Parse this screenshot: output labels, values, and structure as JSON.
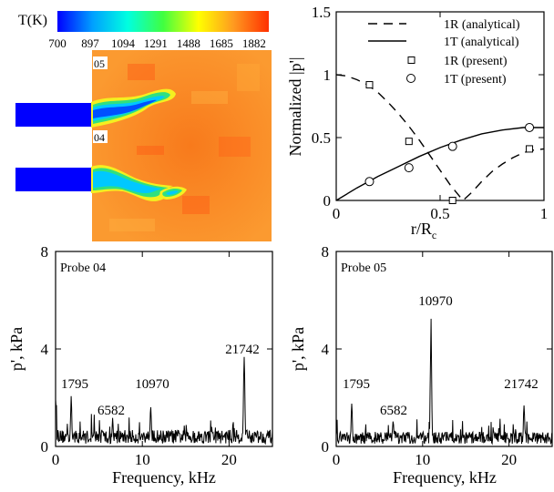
{
  "colorbar": {
    "label": "T(K)",
    "ticks": [
      "700",
      "897",
      "1094",
      "1291",
      "1488",
      "1685",
      "1882"
    ],
    "colors": [
      "#0000ff",
      "#00a0ff",
      "#00ffe0",
      "#40ff40",
      "#ffff00",
      "#ff9a20",
      "#ff3000"
    ]
  },
  "contour": {
    "probe_labels": [
      "05",
      "04"
    ]
  },
  "chart_data": [
    {
      "type": "line",
      "title": "",
      "xlabel": "r/R",
      "xlabel_sub": "c",
      "ylabel": "Normalized |p'|",
      "xlim": [
        0,
        1
      ],
      "ylim": [
        0,
        1.5
      ],
      "xticks": [
        "0",
        "0.5",
        "1"
      ],
      "yticks": [
        "0",
        "0.5",
        "1",
        "1.5"
      ],
      "legend": {
        "position": "top-right",
        "entries": [
          "1R (analytical)",
          "1T (analytical)",
          "1R (present)",
          "1T (present)"
        ]
      },
      "series": [
        {
          "name": "1R (analytical)",
          "style": "dashed",
          "x": [
            0,
            0.05,
            0.1,
            0.15,
            0.2,
            0.25,
            0.3,
            0.35,
            0.4,
            0.45,
            0.5,
            0.55,
            0.6,
            0.61,
            0.65,
            0.7,
            0.75,
            0.8,
            0.85,
            0.9,
            0.95,
            1
          ],
          "y": [
            1.0,
            0.99,
            0.96,
            0.92,
            0.86,
            0.78,
            0.69,
            0.59,
            0.48,
            0.36,
            0.24,
            0.12,
            0.02,
            0.0,
            0.06,
            0.15,
            0.23,
            0.29,
            0.34,
            0.38,
            0.4,
            0.41
          ]
        },
        {
          "name": "1T (analytical)",
          "style": "solid",
          "x": [
            0,
            0.1,
            0.2,
            0.3,
            0.4,
            0.5,
            0.6,
            0.7,
            0.8,
            0.9,
            1
          ],
          "y": [
            0,
            0.1,
            0.19,
            0.27,
            0.35,
            0.42,
            0.48,
            0.53,
            0.56,
            0.58,
            0.58
          ]
        },
        {
          "name": "1R (present)",
          "style": "square",
          "x": [
            0.16,
            0.35,
            0.56,
            0.93
          ],
          "y": [
            0.92,
            0.47,
            0.0,
            0.41
          ]
        },
        {
          "name": "1T (present)",
          "style": "circle",
          "x": [
            0.16,
            0.35,
            0.56,
            0.93
          ],
          "y": [
            0.15,
            0.26,
            0.43,
            0.58
          ]
        }
      ]
    },
    {
      "type": "line",
      "title": "Probe 04",
      "xlabel": "Frequency, kHz",
      "ylabel": "p', kPa",
      "xlim": [
        0,
        25
      ],
      "ylim": [
        0,
        8
      ],
      "xticks": [
        "0",
        "10",
        "20"
      ],
      "yticks": [
        "0",
        "4",
        "8"
      ],
      "peaks": [
        {
          "x": 1.795,
          "y": 2.1,
          "label": "1795"
        },
        {
          "x": 6.582,
          "y": 1.2,
          "label": "6582"
        },
        {
          "x": 10.97,
          "y": 1.8,
          "label": "10970"
        },
        {
          "x": 21.742,
          "y": 4.2,
          "label": "21742"
        }
      ],
      "baseline_kpa": 0.4
    },
    {
      "type": "line",
      "title": "Probe 05",
      "xlabel": "Frequency, kHz",
      "ylabel": "p', kPa",
      "xlim": [
        0,
        25
      ],
      "ylim": [
        0,
        8
      ],
      "xticks": [
        "0",
        "10",
        "20"
      ],
      "yticks": [
        "0",
        "4",
        "8"
      ],
      "peaks": [
        {
          "x": 1.795,
          "y": 2.0,
          "label": "1795"
        },
        {
          "x": 6.582,
          "y": 1.1,
          "label": "6582"
        },
        {
          "x": 10.97,
          "y": 5.3,
          "label": "10970"
        },
        {
          "x": 21.742,
          "y": 1.9,
          "label": "21742"
        }
      ],
      "baseline_kpa": 0.35
    }
  ]
}
